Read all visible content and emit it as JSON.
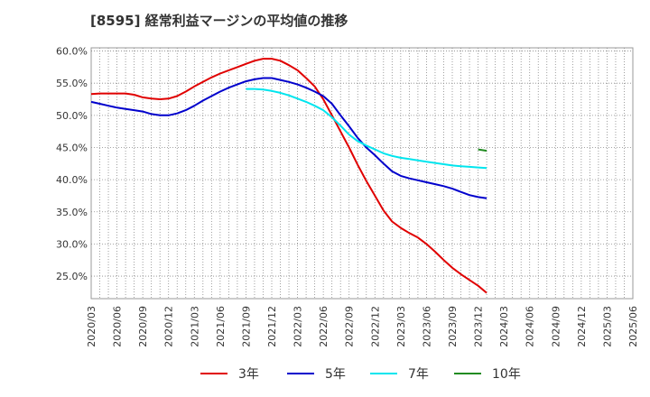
{
  "chart_data": {
    "type": "line",
    "title": "[8595]  経常利益マージンの平均値の推移",
    "xlabel": "",
    "ylabel": "",
    "ylim": [
      21.5,
      60.5
    ],
    "grid": true,
    "legend_position": "bottom",
    "y_ticks": [
      "25.0%",
      "30.0%",
      "35.0%",
      "40.0%",
      "45.0%",
      "50.0%",
      "55.0%",
      "60.0%"
    ],
    "y_tick_values": [
      25,
      30,
      35,
      40,
      45,
      50,
      55,
      60
    ],
    "x_ticks": [
      "2020/03",
      "2020/06",
      "2020/09",
      "2020/12",
      "2021/03",
      "2021/06",
      "2021/09",
      "2021/12",
      "2022/03",
      "2022/06",
      "2022/09",
      "2022/12",
      "2023/03",
      "2023/06",
      "2023/09",
      "2023/12",
      "2024/03",
      "2024/06",
      "2024/09",
      "2024/12",
      "2025/03",
      "2025/06"
    ],
    "series": [
      {
        "name": "3年",
        "color": "#e00000",
        "start_index": 0,
        "values": [
          53.3,
          53.4,
          53.4,
          53.4,
          53.4,
          53.2,
          52.8,
          52.6,
          52.5,
          52.6,
          53.0,
          53.7,
          54.5,
          55.2,
          55.9,
          56.5,
          57.0,
          57.5,
          58.0,
          58.5,
          58.8,
          58.8,
          58.5,
          57.8,
          57.0,
          55.8,
          54.5,
          52.5,
          50.0,
          47.5,
          45.0,
          42.3,
          39.8,
          37.5,
          35.2,
          33.5,
          32.5,
          31.7,
          31.0,
          30.0,
          28.8,
          27.5,
          26.3,
          25.3,
          24.4,
          23.5,
          22.4
        ]
      },
      {
        "name": "5年",
        "color": "#0000cc",
        "start_index": 0,
        "values": [
          52.1,
          51.8,
          51.5,
          51.2,
          51.0,
          50.8,
          50.6,
          50.2,
          50.0,
          50.0,
          50.3,
          50.8,
          51.5,
          52.3,
          53.0,
          53.7,
          54.3,
          54.8,
          55.3,
          55.6,
          55.8,
          55.8,
          55.5,
          55.2,
          54.8,
          54.3,
          53.7,
          53.0,
          51.8,
          50.0,
          48.3,
          46.5,
          45.0,
          43.8,
          42.5,
          41.3,
          40.6,
          40.2,
          39.9,
          39.6,
          39.3,
          39.0,
          38.6,
          38.1,
          37.6,
          37.3,
          37.1
        ]
      },
      {
        "name": "7年",
        "color": "#00e5ee",
        "start_index": 18,
        "values": [
          54.1,
          54.1,
          54.0,
          53.8,
          53.5,
          53.1,
          52.6,
          52.1,
          51.5,
          50.8,
          49.7,
          48.4,
          47.0,
          46.0,
          45.3,
          44.7,
          44.1,
          43.7,
          43.4,
          43.2,
          43.0,
          42.8,
          42.6,
          42.4,
          42.2,
          42.1,
          42.0,
          41.9,
          41.8
        ]
      },
      {
        "name": "10年",
        "color": "#228b22",
        "start_index": 45,
        "values": [
          44.7,
          44.5
        ]
      }
    ]
  }
}
